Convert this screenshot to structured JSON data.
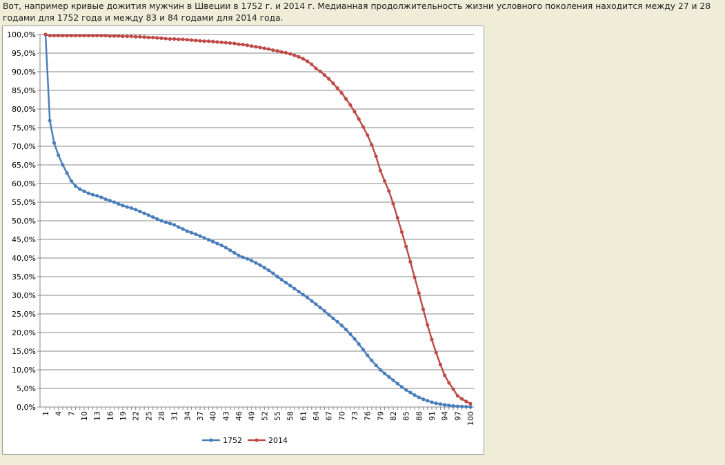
{
  "paragraph": "Вот, например кривые дожития мужчин в Швеции в 1752 г. и 2014 г. Медианная продолжительность жизни условного поколения находится между 27 и 28 годами для 1752 года и между 83 и 84 годами для 2014 года.",
  "chart_data": {
    "type": "line",
    "categories": [
      1,
      null,
      null,
      4,
      null,
      null,
      7,
      null,
      null,
      10,
      null,
      null,
      13,
      null,
      null,
      16,
      null,
      null,
      19,
      null,
      null,
      22,
      null,
      null,
      25,
      null,
      null,
      28,
      null,
      null,
      31,
      null,
      null,
      34,
      null,
      null,
      37,
      null,
      null,
      40,
      null,
      null,
      43,
      null,
      null,
      46,
      null,
      null,
      49,
      null,
      null,
      52,
      null,
      null,
      55,
      null,
      null,
      58,
      null,
      null,
      61,
      null,
      null,
      64,
      null,
      null,
      67,
      null,
      null,
      70,
      null,
      null,
      73,
      null,
      null,
      76,
      null,
      null,
      79,
      null,
      null,
      82,
      null,
      null,
      85,
      null,
      null,
      88,
      null,
      null,
      91,
      null,
      null,
      94,
      null,
      null,
      97,
      null,
      null,
      100
    ],
    "series": [
      {
        "name": "1752",
        "color": "#4a7ebb",
        "values": [
          100,
          76.9,
          70.9,
          67.6,
          65.0,
          62.8,
          60.7,
          59.3,
          58.5,
          57.9,
          57.4,
          57.0,
          56.7,
          56.3,
          55.8,
          55.4,
          55.0,
          54.5,
          54.1,
          53.7,
          53.4,
          53.0,
          52.5,
          52.0,
          51.5,
          51.0,
          50.5,
          50.0,
          49.6,
          49.3,
          48.9,
          48.3,
          47.8,
          47.2,
          46.8,
          46.4,
          45.9,
          45.4,
          44.9,
          44.4,
          43.9,
          43.4,
          42.8,
          42.1,
          41.4,
          40.7,
          40.2,
          39.8,
          39.3,
          38.7,
          38.1,
          37.4,
          36.7,
          35.9,
          35.0,
          34.2,
          33.4,
          32.6,
          31.8,
          31.0,
          30.2,
          29.4,
          28.5,
          27.6,
          26.7,
          25.8,
          24.8,
          23.8,
          22.9,
          21.9,
          20.8,
          19.6,
          18.3,
          16.9,
          15.4,
          13.9,
          12.5,
          11.2,
          10.0,
          9.0,
          8.1,
          7.2,
          6.3,
          5.4,
          4.6,
          3.9,
          3.2,
          2.6,
          2.1,
          1.7,
          1.3,
          1.0,
          0.8,
          0.6,
          0.45,
          0.3,
          0.2,
          0.15,
          0.1,
          0.05
        ]
      },
      {
        "name": "2014",
        "color": "#be4b48",
        "values": [
          100,
          99.7,
          99.7,
          99.7,
          99.7,
          99.7,
          99.7,
          99.7,
          99.7,
          99.7,
          99.7,
          99.7,
          99.7,
          99.7,
          99.7,
          99.6,
          99.6,
          99.6,
          99.5,
          99.5,
          99.5,
          99.4,
          99.4,
          99.3,
          99.2,
          99.2,
          99.1,
          99.0,
          98.9,
          98.8,
          98.8,
          98.7,
          98.7,
          98.6,
          98.5,
          98.4,
          98.3,
          98.2,
          98.2,
          98.1,
          98.0,
          97.9,
          97.8,
          97.7,
          97.6,
          97.4,
          97.3,
          97.1,
          96.9,
          96.7,
          96.5,
          96.3,
          96.1,
          95.8,
          95.6,
          95.3,
          95.1,
          94.8,
          94.4,
          94.0,
          93.5,
          92.8,
          92.0,
          90.9,
          90.1,
          89.1,
          88.1,
          86.9,
          85.6,
          84.3,
          82.7,
          81.1,
          79.3,
          77.3,
          75.2,
          73.0,
          70.4,
          67.3,
          63.5,
          60.7,
          58.0,
          54.6,
          50.8,
          47.0,
          43.1,
          39.0,
          34.8,
          30.6,
          26.2,
          22.0,
          18.1,
          14.6,
          11.4,
          8.5,
          6.5,
          4.8,
          3.0,
          2.2,
          1.5,
          0.9
        ]
      }
    ],
    "ylim": [
      0,
      100
    ],
    "yticks": [
      {
        "value": 0,
        "label": "0,0%"
      },
      {
        "value": 5,
        "label": "5,0%"
      },
      {
        "value": 10,
        "label": "10,0%"
      },
      {
        "value": 15,
        "label": "15,0%"
      },
      {
        "value": 20,
        "label": "20,0%"
      },
      {
        "value": 25,
        "label": "25,0%"
      },
      {
        "value": 30,
        "label": "30,0%"
      },
      {
        "value": 35,
        "label": "35,0%"
      },
      {
        "value": 40,
        "label": "40,0%"
      },
      {
        "value": 45,
        "label": "45,0%"
      },
      {
        "value": 50,
        "label": "50,0%"
      },
      {
        "value": 55,
        "label": "55,0%"
      },
      {
        "value": 60,
        "label": "60,0%"
      },
      {
        "value": 65,
        "label": "65,0%"
      },
      {
        "value": 70,
        "label": "70,0%"
      },
      {
        "value": 75,
        "label": "75,0%"
      },
      {
        "value": 80,
        "label": "80,0%"
      },
      {
        "value": 85,
        "label": "85,0%"
      },
      {
        "value": 90,
        "label": "90,0%"
      },
      {
        "value": 95,
        "label": "95,0%"
      },
      {
        "value": 100,
        "label": "100,0%"
      }
    ],
    "grid": true,
    "legend": "bottom"
  }
}
